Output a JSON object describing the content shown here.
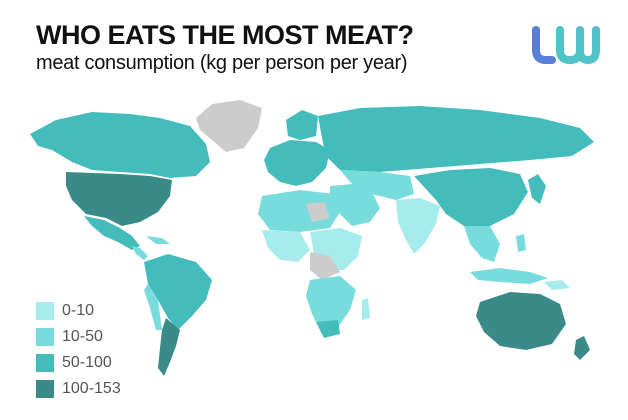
{
  "title": "WHO EATS THE MOST MEAT?",
  "subtitle": "meat consumption (kg per person per year)",
  "logo": {
    "mark": "lw",
    "colors": [
      "#5a7fd6",
      "#4fc3c8"
    ]
  },
  "colors": {
    "0-10": "#a6ecec",
    "10-50": "#78dcdc",
    "50-100": "#45bcbc",
    "100-153": "#3a8a8a",
    "no-data": "#cccccc"
  },
  "legend": [
    {
      "label": "0-10",
      "color": "#a6ecec"
    },
    {
      "label": "10-50",
      "color": "#78dcdc"
    },
    {
      "label": "50-100",
      "color": "#45bcbc"
    },
    {
      "label": "100-153",
      "color": "#3a8a8a"
    }
  ]
}
